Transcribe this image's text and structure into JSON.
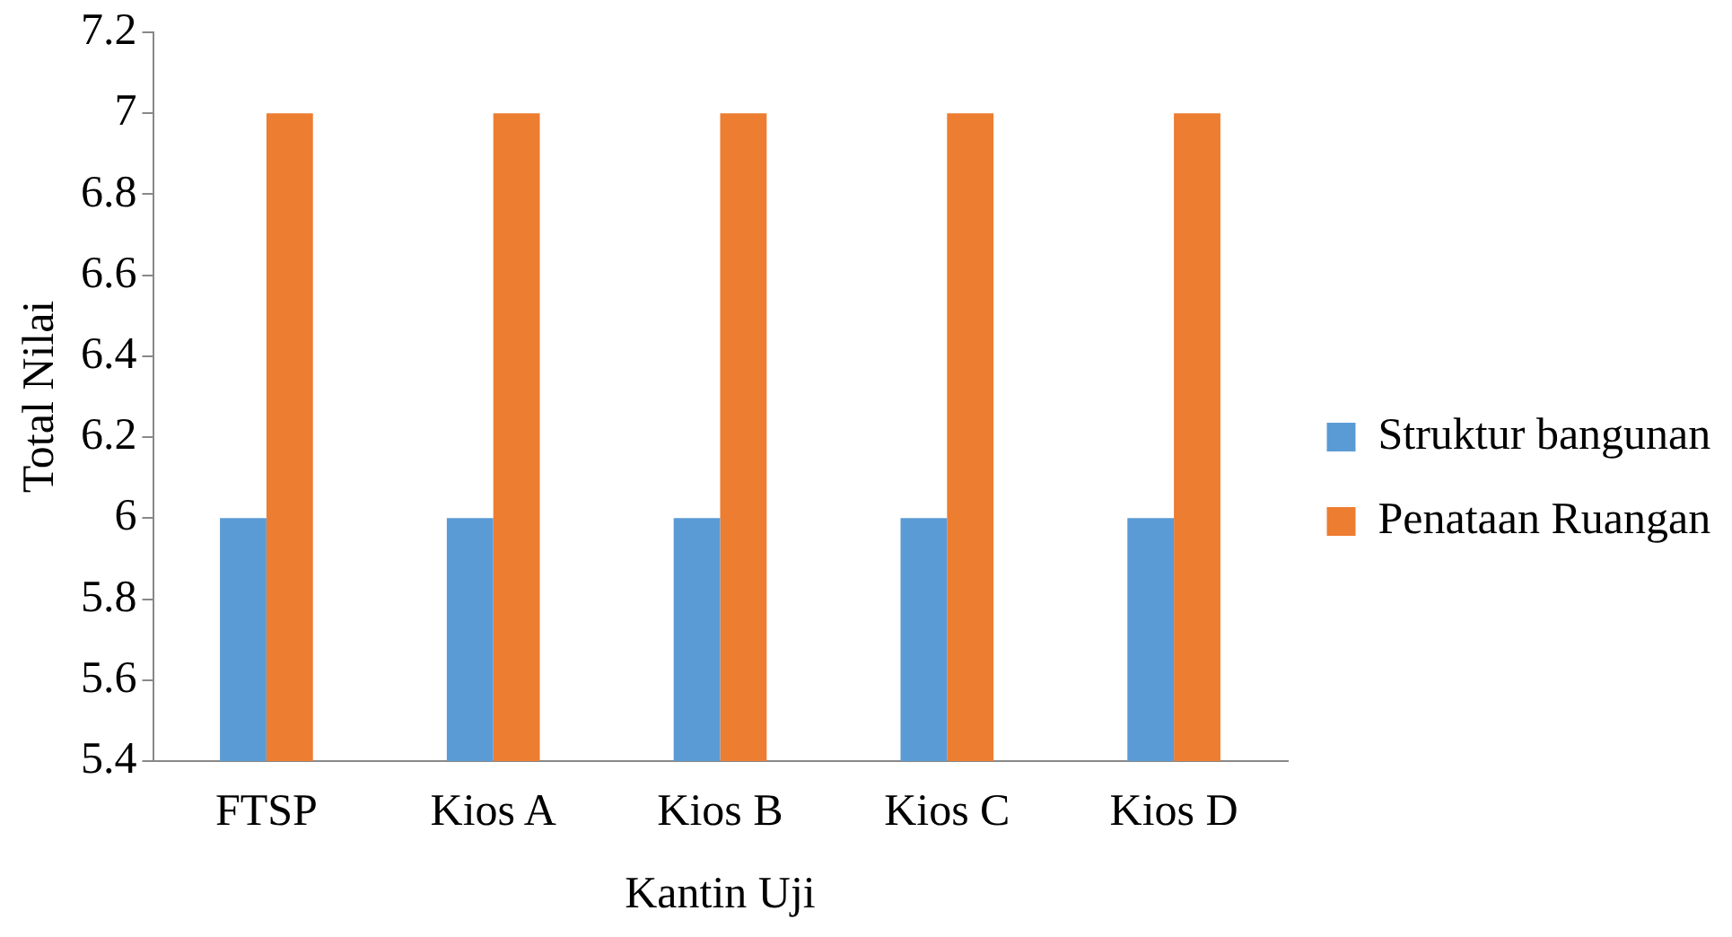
{
  "chart_data": {
    "type": "bar",
    "xlabel": "Kantin Uji",
    "ylabel": "Total Nilai",
    "categories": [
      "FTSP",
      "Kios A",
      "Kios B",
      "Kios C",
      "Kios D"
    ],
    "series": [
      {
        "name": "Struktur bangunan",
        "color": "#5b9bd5",
        "values": [
          6,
          6,
          6,
          6,
          6
        ]
      },
      {
        "name": "Penataan Ruangan",
        "color": "#ed7d31",
        "values": [
          7,
          7,
          7,
          7,
          7
        ]
      }
    ],
    "ylim": [
      5.4,
      7.2
    ],
    "yticks": [
      5.4,
      5.6,
      5.8,
      6,
      6.2,
      6.4,
      6.6,
      6.8,
      7,
      7.2
    ],
    "legend": "right"
  }
}
